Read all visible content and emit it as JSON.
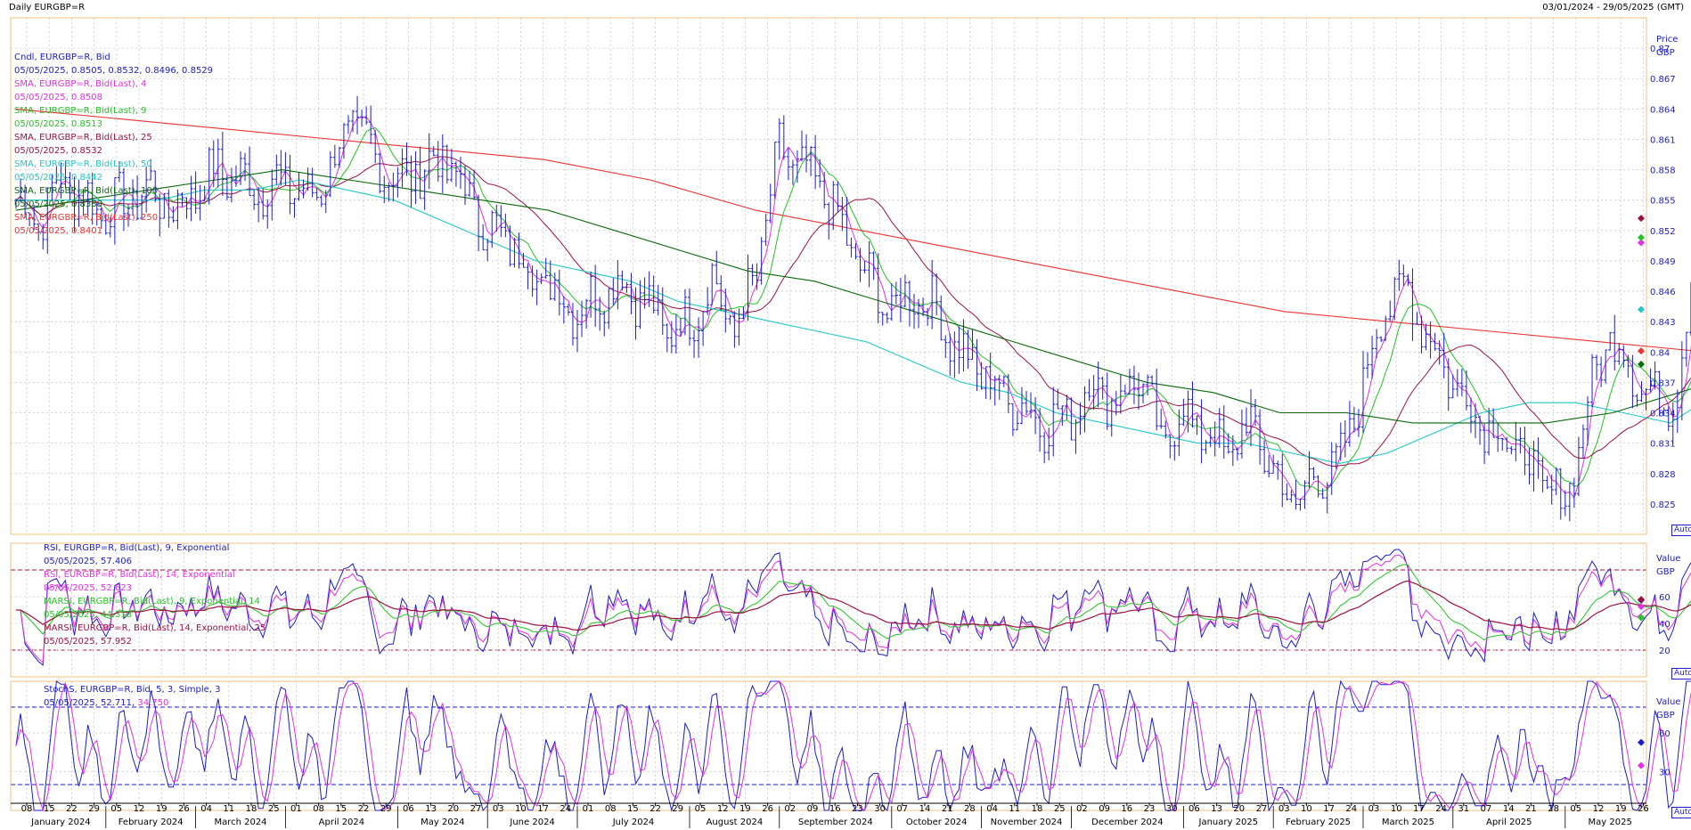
{
  "window": {
    "title": "Daily EURGBP=R",
    "date_range": "03/01/2024 - 29/05/2025 (GMT)"
  },
  "price_panel": {
    "axis_title": "Price",
    "axis_unit": "GBP",
    "auto_label": "Auto",
    "legend": [
      {
        "name": "Cndl, EURGBP=R, Bid",
        "value": "05/05/2025, 0.8505, 0.8532, 0.8496, 0.8529",
        "color": "#1c1cc8"
      },
      {
        "name": "SMA, EURGBP=R, Bid(Last),  4",
        "value": "05/05/2025, 0.8508",
        "color": "#e62ee6"
      },
      {
        "name": "SMA, EURGBP=R, Bid(Last),  9",
        "value": "05/05/2025, 0.8513",
        "color": "#22c422"
      },
      {
        "name": "SMA, EURGBP=R, Bid(Last),  25",
        "value": "05/05/2025, 0.8532",
        "color": "#a01040"
      },
      {
        "name": "SMA, EURGBP=R, Bid(Last),  50",
        "value": "05/05/2025, 0.8442",
        "color": "#22c8c8"
      },
      {
        "name": "SMA, EURGBP=R, Bid(Last),  100",
        "value": "05/05/2025, 0.8388",
        "color": "#0a6a0a"
      },
      {
        "name": "SMA, EURGBP=R, Bid(Last),  250",
        "value": "05/05/2025, 0.8401",
        "color": "#ee3030"
      }
    ]
  },
  "rsi_panel": {
    "axis_title": "Value",
    "axis_unit": "GBP",
    "auto_label": "Auto",
    "legend": [
      {
        "name": "RSI, EURGBP=R, Bid(Last),  9, Exponential",
        "value": "05/05/2025, 57.406",
        "color": "#1c1cc8"
      },
      {
        "name": "RSI, EURGBP=R, Bid(Last),  14, Exponential",
        "value": "05/05/2025, 52.623",
        "color": "#e62ee6"
      },
      {
        "name": "MARSI, EURGBP=R, Bid(Last),  9, Exponential, 14",
        "value": "05/05/2025, 44.318",
        "color": "#22c422"
      },
      {
        "name": "MARSI, EURGBP=R, Bid(Last),  14, Exponential, 25",
        "value": "05/05/2025, 57.952",
        "color": "#a01040"
      }
    ]
  },
  "stoch_panel": {
    "axis_title": "Value",
    "axis_unit": "GBP",
    "auto_label": "Auto",
    "legend": {
      "name": "StochS, EURGBP=R, Bid,  5, 3, Simple, 3",
      "date": "05/05/2025,",
      "k": "52.711,",
      "d": "34.750"
    }
  },
  "colors": {
    "candle": "#1c1cc8",
    "sma4": "#e62ee6",
    "sma9": "#22c422",
    "sma25": "#a01040",
    "sma50": "#22c8c8",
    "sma100": "#0a6a0a",
    "sma250": "#ee3030",
    "frame": "#f0c080",
    "grid": "#c8c8c8"
  },
  "chart_data": [
    {
      "type": "candlestick",
      "title": "Daily EURGBP=R",
      "ylabel": "Price GBP",
      "ylim": [
        0.822,
        0.873
      ],
      "yticks": [
        0.825,
        0.828,
        0.831,
        0.834,
        0.837,
        0.84,
        0.843,
        0.846,
        0.849,
        0.852,
        0.855,
        0.858,
        0.861,
        0.864,
        0.867,
        0.87
      ],
      "ytick_labels": [
        "0.825",
        "0.828",
        "0.831",
        "0.834",
        "0.837",
        "0.84",
        "0.843",
        "0.846",
        "0.849",
        "0.852",
        "0.855",
        "0.858",
        "0.861",
        "0.864",
        "0.867",
        "0.87"
      ],
      "x_tick_labels": [
        "08",
        "15",
        "22",
        "29",
        "05",
        "12",
        "19",
        "26",
        "04",
        "11",
        "18",
        "25",
        "01",
        "08",
        "15",
        "22",
        "29",
        "06",
        "13",
        "20",
        "27",
        "03",
        "10",
        "17",
        "24",
        "01",
        "08",
        "15",
        "22",
        "29",
        "05",
        "12",
        "19",
        "26",
        "02",
        "09",
        "16",
        "23",
        "30",
        "07",
        "14",
        "21",
        "28",
        "04",
        "11",
        "18",
        "25",
        "02",
        "09",
        "16",
        "23",
        "30",
        "06",
        "13",
        "20",
        "27",
        "03",
        "10",
        "17",
        "24",
        "03",
        "10",
        "17",
        "24",
        "31",
        "07",
        "14",
        "21",
        "28",
        "05",
        "12",
        "19",
        "26"
      ],
      "month_labels": [
        "January 2024",
        "February 2024",
        "March 2024",
        "April 2024",
        "May 2024",
        "June 2024",
        "July 2024",
        "August 2024",
        "September 2024",
        "October 2024",
        "November 2024",
        "December 2024",
        "January 2025",
        "February 2025",
        "March 2025",
        "April 2025",
        "May 2025"
      ],
      "close_path": {
        "weeks_from": "2024-01-08",
        "values": [
          0.855,
          0.853,
          0.857,
          0.855,
          0.854,
          0.855,
          0.856,
          0.854,
          0.856,
          0.858,
          0.857,
          0.856,
          0.857,
          0.855,
          0.858,
          0.863,
          0.859,
          0.857,
          0.858,
          0.859,
          0.856,
          0.852,
          0.851,
          0.848,
          0.846,
          0.844,
          0.846,
          0.847,
          0.845,
          0.842,
          0.843,
          0.847,
          0.842,
          0.848,
          0.86,
          0.858,
          0.856,
          0.851,
          0.847,
          0.844,
          0.846,
          0.844,
          0.84,
          0.838,
          0.836,
          0.834,
          0.833,
          0.834,
          0.837,
          0.835,
          0.838,
          0.831,
          0.834,
          0.832,
          0.83,
          0.833,
          0.828,
          0.825,
          0.828,
          0.829,
          0.837,
          0.845,
          0.846,
          0.841,
          0.837,
          0.834,
          0.832,
          0.83,
          0.827,
          0.825,
          0.835,
          0.842,
          0.838,
          0.835,
          0.836,
          0.852,
          0.861,
          0.86,
          0.857,
          0.851,
          0.853
        ]
      },
      "candles": [
        {
          "date": "2025-05-05",
          "open": 0.8505,
          "high": 0.8532,
          "low": 0.8496,
          "close": 0.8529
        }
      ],
      "series": [
        {
          "name": "SMA 4",
          "last": 0.8508
        },
        {
          "name": "SMA 9",
          "last": 0.8513
        },
        {
          "name": "SMA 25",
          "last": 0.8532
        },
        {
          "name": "SMA 50",
          "last": 0.8442,
          "path": [
            0.855,
            0.855,
            0.855,
            0.855,
            0.856,
            0.856,
            0.857,
            0.856,
            0.855,
            0.853,
            0.851,
            0.849,
            0.848,
            0.847,
            0.845,
            0.844,
            0.843,
            0.842,
            0.841,
            0.839,
            0.837,
            0.836,
            0.834,
            0.833,
            0.832,
            0.831,
            0.831,
            0.83,
            0.829,
            0.83,
            0.832,
            0.834,
            0.835,
            0.835,
            0.834,
            0.833,
            0.836,
            0.84,
            0.844
          ]
        },
        {
          "name": "SMA 100",
          "last": 0.8388,
          "path": [
            0.854,
            0.855,
            0.856,
            0.857,
            0.858,
            0.857,
            0.856,
            0.855,
            0.854,
            0.852,
            0.85,
            0.848,
            0.847,
            0.845,
            0.843,
            0.841,
            0.839,
            0.837,
            0.836,
            0.834,
            0.834,
            0.833,
            0.833,
            0.833,
            0.834,
            0.836,
            0.838,
            0.839
          ]
        },
        {
          "name": "SMA 250",
          "last": 0.8401,
          "path": [
            0.864,
            0.863,
            0.862,
            0.861,
            0.86,
            0.859,
            0.857,
            0.854,
            0.852,
            0.85,
            0.848,
            0.846,
            0.844,
            0.843,
            0.842,
            0.841,
            0.84,
            0.84
          ]
        }
      ]
    },
    {
      "type": "line",
      "title": "RSI",
      "ylim": [
        0,
        100
      ],
      "yticks": [
        20,
        40,
        60
      ],
      "guide_lines": [
        20,
        80
      ],
      "series": [
        {
          "name": "RSI 9",
          "last": 57.406
        },
        {
          "name": "RSI 14",
          "last": 52.623
        },
        {
          "name": "MARSI 9",
          "last": 44.318
        },
        {
          "name": "MARSI 14",
          "last": 57.952
        }
      ]
    },
    {
      "type": "line",
      "title": "StochS",
      "ylim": [
        0,
        100
      ],
      "yticks": [
        30,
        60
      ],
      "guide_lines": [
        20,
        80
      ],
      "series": [
        {
          "name": "%K",
          "last": 52.711
        },
        {
          "name": "%D",
          "last": 34.75
        }
      ]
    }
  ]
}
